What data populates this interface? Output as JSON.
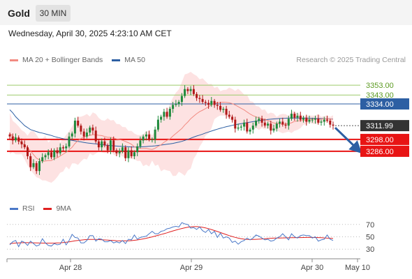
{
  "header": {
    "symbol": "Gold",
    "timeframe": "30 MIN"
  },
  "timestamp": "Wednesday, April 30, 2025 4:23:10 AM CET",
  "main_legend": [
    {
      "label": "MA 20 + Bollinger Bands",
      "color": "#f28b82"
    },
    {
      "label": "MA 50",
      "color": "#2d5fa3"
    }
  ],
  "credit": "Research © 2025 Trading Central",
  "rsi_legend": [
    {
      "label": "RSI",
      "color": "#4a78c8"
    },
    {
      "label": "9MA",
      "color": "#e02020"
    }
  ],
  "chart_data": [
    {
      "type": "candlestick",
      "y_range": [
        3240,
        3370
      ],
      "x_ticks": [
        "Apr 28",
        "Apr 29",
        "Apr 30",
        "May 10"
      ],
      "grid": false,
      "levels": [
        {
          "label": "3353.00",
          "value": 3353.0,
          "style": "green-line"
        },
        {
          "label": "3343.00",
          "value": 3343.0,
          "style": "green-line"
        },
        {
          "label": "3334.00",
          "value": 3334.0,
          "style": "blue-line"
        },
        {
          "label": "3311.99",
          "value": 3311.99,
          "style": "last-price"
        },
        {
          "label": "3298.00",
          "value": 3298.0,
          "style": "red-line"
        },
        {
          "label": "3286.00",
          "value": 3286.0,
          "style": "red-line"
        }
      ],
      "close": [
        3301,
        3297,
        3300,
        3296,
        3293,
        3290,
        3281,
        3270,
        3274,
        3266,
        3276,
        3280,
        3282,
        3285,
        3280,
        3287,
        3284,
        3290,
        3289,
        3291,
        3301,
        3304,
        3317,
        3312,
        3306,
        3301,
        3305,
        3310,
        3307,
        3296,
        3290,
        3296,
        3292,
        3287,
        3297,
        3287,
        3284,
        3286,
        3290,
        3279,
        3287,
        3281,
        3285,
        3291,
        3297,
        3301,
        3303,
        3298,
        3298,
        3308,
        3318,
        3321,
        3326,
        3321,
        3329,
        3333,
        3334,
        3336,
        3342,
        3349,
        3347,
        3349,
        3344,
        3340,
        3339,
        3336,
        3335,
        3333,
        3337,
        3333,
        3332,
        3328,
        3329,
        3323,
        3321,
        3318,
        3309,
        3310,
        3311,
        3315,
        3306,
        3308,
        3312,
        3317,
        3319,
        3315,
        3312,
        3314,
        3307,
        3309,
        3314,
        3316,
        3313,
        3312,
        3319,
        3324,
        3320,
        3322,
        3318,
        3320,
        3316,
        3318,
        3318,
        3319,
        3315,
        3316,
        3318,
        3317,
        3313,
        3312
      ],
      "ma20": [
        3304,
        3301.5,
        3298.9,
        3296.6,
        3294.4,
        3292.6,
        3289.7,
        3286.4,
        3282.6,
        3279.1,
        3277.3,
        3275.9,
        3276.1,
        3276.7,
        3276.5,
        3278.5,
        3279.4,
        3281.2,
        3283.1,
        3285,
        3287.5,
        3290,
        3293.9,
        3296.7,
        3299.1,
        3300.3,
        3301.3,
        3302.1,
        3302.8,
        3302.8,
        3302.2,
        3301.9,
        3301,
        3300.1,
        3300.1,
        3299.5,
        3298.6,
        3297.8,
        3297.1,
        3295.9,
        3294.7,
        3293.1,
        3290.6,
        3289.3,
        3288.8,
        3288.8,
        3288.9,
        3288.3,
        3287.9,
        3289,
        3291,
        3292.5,
        3295.1,
        3297,
        3298.6,
        3301.5,
        3304,
        3306.5,
        3309.1,
        3312.6,
        3315.6,
        3319,
        3321.6,
        3324.1,
        3326.1,
        3327.6,
        3329.2,
        3331,
        3333.1,
        3334.5,
        3335.1,
        3335.5,
        3335.7,
        3335.5,
        3335.1,
        3334.3,
        3332.9,
        3331.2,
        3329.5,
        3327.9,
        3325.8,
        3323.7,
        3322.1,
        3320.9,
        3319.9,
        3319.1,
        3318.1,
        3317.2,
        3315.9,
        3314.7,
        3314.1,
        3313.8,
        3313.5,
        3313.7,
        3314,
        3314.9,
        3316.2,
        3316.7,
        3317,
        3317.3,
        3317.8,
        3318.3,
        3318.6,
        3318.7,
        3318.5,
        3318.6,
        3318.9,
        3319,
        3318.7,
        3318.4
      ],
      "bb_upper": [
        3325,
        3316.8,
        3314.3,
        3311.3,
        3307.4,
        3305.5,
        3301.8,
        3306.3,
        3306.6,
        3302.8,
        3298.6,
        3298.9,
        3301.7,
        3295,
        3297.8,
        3297.2,
        3300.6,
        3295.4,
        3298.6,
        3302.5,
        3306.4,
        3311.1,
        3316.2,
        3320.8,
        3321.1,
        3322.2,
        3323.8,
        3321.2,
        3325.4,
        3323.9,
        3319.8,
        3317.4,
        3317,
        3319.5,
        3317.2,
        3317.7,
        3313.6,
        3313.5,
        3310.6,
        3310.5,
        3306.6,
        3306.7,
        3304,
        3302.5,
        3302.3,
        3303,
        3306.6,
        3306.2,
        3301.9,
        3306.6,
        3309.8,
        3319.2,
        3325.3,
        3325.5,
        3334,
        3340.3,
        3345.4,
        3348.6,
        3356.1,
        3363.8,
        3364.8,
        3366.5,
        3364.1,
        3362.4,
        3359,
        3360,
        3356.9,
        3354,
        3354.3,
        3350.2,
        3351.5,
        3346.9,
        3348.1,
        3348.3,
        3350.6,
        3349.1,
        3347.2,
        3349.3,
        3346.7,
        3343.4,
        3343.3,
        3336.7,
        3336.1,
        3331.9,
        3331.3,
        3327.9,
        3328.4,
        3324,
        3325.2,
        3324.3,
        3320.7,
        3323.1,
        3323.9,
        3323.5,
        3321.8,
        3326.7,
        3325.9,
        3324.2,
        3323.6,
        3321.5,
        3322.2,
        3322.1,
        3322.2,
        3322.2,
        3323.9,
        3320.9,
        3321.6,
        3322.3,
        3320.9,
        3322.5
      ],
      "bb_lower": [
        3283.2,
        3285.2,
        3282.9,
        3282.8,
        3283.1,
        3277.8,
        3271.8,
        3267.2,
        3263.3,
        3259.7,
        3258.5,
        3256.4,
        3256.5,
        3255.2,
        3254.1,
        3256.4,
        3260,
        3264.3,
        3265.5,
        3270.5,
        3267.6,
        3273.7,
        3273.7,
        3272.2,
        3275.6,
        3278.5,
        3277.7,
        3283.8,
        3281.8,
        3283.6,
        3285.7,
        3284.9,
        3284.1,
        3284.3,
        3286.4,
        3282.4,
        3281.4,
        3282.9,
        3280.7,
        3279.8,
        3279.7,
        3278.3,
        3278.1,
        3276.1,
        3276.3,
        3270.9,
        3272.5,
        3270.5,
        3276.7,
        3271.3,
        3272.5,
        3265.6,
        3267.6,
        3266.6,
        3265.9,
        3260.9,
        3261.1,
        3265.2,
        3263.5,
        3261.2,
        3266.4,
        3268.4,
        3278.4,
        3283,
        3290.8,
        3295.3,
        3301.8,
        3304.2,
        3309.3,
        3318.4,
        3320.8,
        3322.3,
        3322.2,
        3321.9,
        3318.6,
        3316.6,
        3317.7,
        3312.4,
        3311.6,
        3312.5,
        3308.5,
        3310.9,
        3307.3,
        3309.5,
        3307.6,
        3309.6,
        3308.1,
        3309.3,
        3307.4,
        3306.9,
        3307.2,
        3305.5,
        3304.3,
        3305.1,
        3306,
        3304.4,
        3306.8,
        3307.7,
        3309.5,
        3313,
        3313.5,
        3315.7,
        3313.6,
        3313.8,
        3313.3,
        3316.6,
        3314.9,
        3315.9,
        3314.3,
        3316.4
      ],
      "ma50": [
        3328,
        3325,
        3321,
        3318,
        3315,
        3312,
        3310,
        3308,
        3307,
        3306,
        3305,
        3304.4,
        3303.6,
        3302.8,
        3302,
        3301,
        3300.2,
        3299.5,
        3298.8,
        3298.1,
        3297.5,
        3297,
        3296.5,
        3296,
        3295.5,
        3295,
        3294.5,
        3294.1,
        3293.8,
        3293.5,
        3293.1,
        3292.7,
        3292.3,
        3292,
        3291.7,
        3291.5,
        3291.3,
        3291.1,
        3291,
        3290.8,
        3290.6,
        3290.4,
        3290.3,
        3290.3,
        3290.4,
        3290.6,
        3290.8,
        3291,
        3291.2,
        3291.5,
        3291.9,
        3292.3,
        3292.7,
        3293.1,
        3293.5,
        3294,
        3294.7,
        3295.3,
        3296,
        3297,
        3298.1,
        3299.2,
        3300.4,
        3301.5,
        3302.4,
        3303.4,
        3304.5,
        3305.5,
        3306.5,
        3307.5,
        3308.4,
        3309.3,
        3310.1,
        3310.9,
        3311.6,
        3312.3,
        3312.9,
        3313.5,
        3314,
        3314.5,
        3315,
        3315.5,
        3316,
        3316.5,
        3317,
        3317.4,
        3317.8,
        3318.2,
        3318.5,
        3318.8,
        3319,
        3319.2,
        3319.4,
        3319.5,
        3319.6,
        3319.7,
        3319.7,
        3319.7,
        3319.7,
        3319.7,
        3319.6,
        3319.5,
        3319.4,
        3319.3,
        3319.2,
        3319.1,
        3319,
        3318.9,
        3318.8,
        3318.7
      ],
      "forecast_arrow": {
        "from": 3311.99,
        "to": 3286.0
      }
    },
    {
      "type": "line",
      "title": "RSI",
      "y_range": [
        20,
        80
      ],
      "ticks": [
        70,
        50,
        30
      ],
      "series": [
        {
          "name": "RSI",
          "color": "#4a78c8",
          "values": [
            37,
            42,
            44,
            34,
            43,
            41,
            36,
            43,
            39,
            35,
            37,
            47,
            40,
            36,
            35,
            39,
            37,
            38,
            46,
            37,
            44,
            54,
            49,
            48,
            40,
            40,
            44,
            52,
            52,
            43,
            47,
            46,
            42,
            42,
            44,
            40,
            42,
            40,
            44,
            39,
            46,
            45,
            53,
            46,
            49,
            50,
            51,
            55,
            59,
            55,
            55,
            59,
            60,
            63,
            64,
            66,
            67,
            66,
            73,
            71,
            70,
            64,
            65,
            62,
            66,
            60,
            57,
            62,
            55,
            59,
            49,
            56,
            48,
            50,
            48,
            41,
            43,
            38,
            42,
            44,
            48,
            45,
            48,
            53,
            51,
            48,
            45,
            46,
            43,
            44,
            48,
            50,
            55,
            50,
            45,
            55,
            50,
            48,
            52,
            53,
            52,
            52,
            48,
            50,
            43,
            45,
            46,
            53,
            46,
            44
          ]
        },
        {
          "name": "9MA",
          "color": "#e02020",
          "values": [
            39,
            39.4,
            39.9,
            40.2,
            40.4,
            40.5,
            40.5,
            40.4,
            40.3,
            40.1,
            39.9,
            39.8,
            39.7,
            39.7,
            39.7,
            39.8,
            40,
            40.3,
            40.7,
            41.3,
            41.9,
            42.6,
            43.4,
            44.1,
            44.7,
            45.2,
            45.6,
            45.8,
            45.8,
            45.7,
            45.5,
            45.2,
            44.9,
            44.6,
            44.3,
            44,
            43.7,
            43.5,
            43.4,
            43.4,
            43.5,
            43.8,
            44.3,
            44.9,
            45.7,
            46.6,
            47.6,
            48.7,
            49.9,
            51.1,
            52.4,
            53.7,
            55.1,
            56.5,
            58,
            59.5,
            60.9,
            62.2,
            63.5,
            64.6,
            65.5,
            66.1,
            66.5,
            66.5,
            66.1,
            65.4,
            64.4,
            63.2,
            61.8,
            60.2,
            58.6,
            56.9,
            55.2,
            53.5,
            51.9,
            50.4,
            49.1,
            47.9,
            46.9,
            46.2,
            45.8,
            45.6,
            45.7,
            45.9,
            46.2,
            46.5,
            46.9,
            47.3,
            47.6,
            47.8,
            48,
            48.1,
            48.2,
            48.3,
            48.4,
            48.5,
            48.6,
            48.7,
            48.8,
            48.9,
            49,
            49,
            49,
            48.9,
            48.7,
            48.5,
            48.2,
            47.9,
            47.6,
            47.3
          ]
        }
      ]
    }
  ]
}
